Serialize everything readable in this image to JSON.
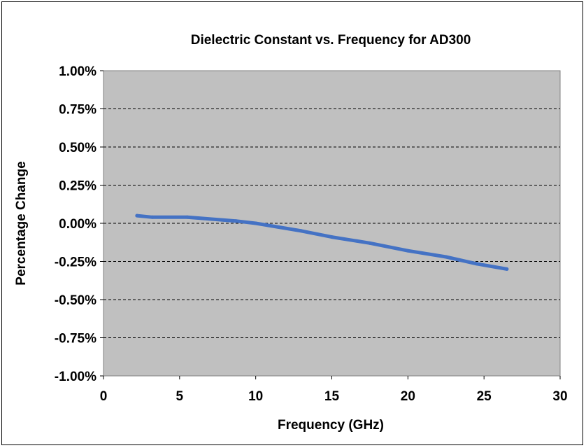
{
  "chart_data": {
    "type": "line",
    "title": "Dielectric Constant vs. Frequency for AD300",
    "xlabel": "Frequency (GHz)",
    "ylabel": "Percentage Change",
    "xlim": [
      0,
      30
    ],
    "ylim": [
      -1.0,
      1.0
    ],
    "x_ticks": [
      0,
      5,
      10,
      15,
      20,
      25,
      30
    ],
    "x_tick_labels": [
      "0",
      "5",
      "10",
      "15",
      "20",
      "25",
      "30"
    ],
    "y_ticks": [
      1.0,
      0.75,
      0.5,
      0.25,
      0.0,
      -0.25,
      -0.5,
      -0.75,
      -1.0
    ],
    "y_tick_labels": [
      "1.00%",
      "0.75%",
      "0.50%",
      "0.25%",
      "0.00%",
      "-0.25%",
      "-0.50%",
      "-0.75%",
      "-1.00%"
    ],
    "grid": "horizontal dashed",
    "legend": "none",
    "series": [
      {
        "x": [
          2.2,
          3.2,
          5.5,
          8.7,
          10.0,
          13.0,
          15.0,
          17.5,
          20.0,
          22.5,
          24.5,
          26.5
        ],
        "y": [
          0.05,
          0.04,
          0.04,
          0.015,
          0.0,
          -0.05,
          -0.09,
          -0.13,
          -0.18,
          -0.22,
          -0.265,
          -0.3
        ]
      }
    ],
    "colors": {
      "plot_background": "#c0c0c0",
      "line": "#4472c4",
      "gridline": "#000000"
    }
  }
}
